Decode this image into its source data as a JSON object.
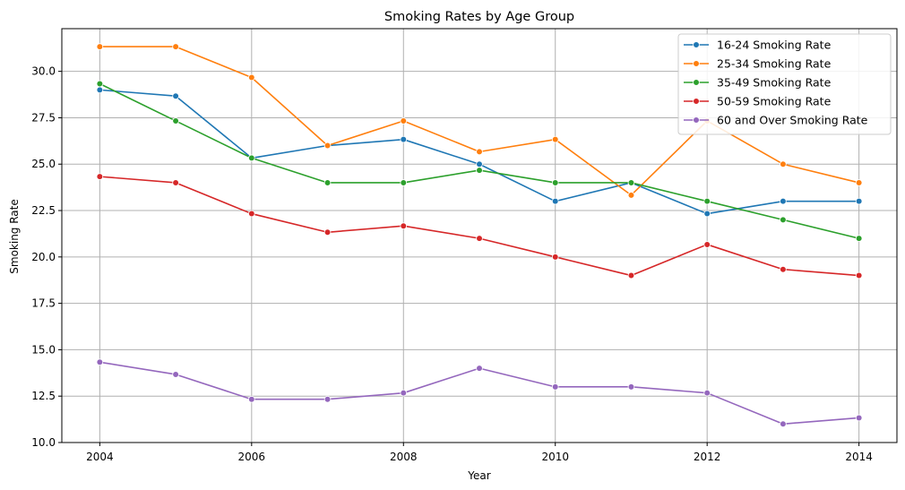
{
  "chart_data": {
    "type": "line",
    "title": "Smoking Rates by Age Group",
    "xlabel": "Year",
    "ylabel": "Smoking Rate",
    "x": [
      2004,
      2005,
      2006,
      2007,
      2008,
      2009,
      2010,
      2011,
      2012,
      2013,
      2014
    ],
    "xlim": [
      2003.5,
      2014.5
    ],
    "ylim": [
      10.0,
      32.3
    ],
    "xticks": [
      2004,
      2006,
      2008,
      2010,
      2012,
      2014
    ],
    "xtick_labels": [
      "2004",
      "2006",
      "2008",
      "2010",
      "2012",
      "2014"
    ],
    "yticks": [
      10.0,
      12.5,
      15.0,
      17.5,
      20.0,
      22.5,
      25.0,
      27.5,
      30.0
    ],
    "ytick_labels": [
      "10.0",
      "12.5",
      "15.0",
      "17.5",
      "20.0",
      "22.5",
      "25.0",
      "27.5",
      "30.0"
    ],
    "grid": true,
    "legend_position": "top-right",
    "series": [
      {
        "name": "16-24 Smoking Rate",
        "color": "#1f77b4",
        "values": [
          29.0,
          28.67,
          25.33,
          26.0,
          26.33,
          25.0,
          23.0,
          24.0,
          22.33,
          23.0,
          23.0
        ]
      },
      {
        "name": "25-34 Smoking Rate",
        "color": "#ff7f0e",
        "values": [
          31.33,
          31.33,
          29.67,
          26.0,
          27.33,
          25.67,
          26.33,
          23.33,
          27.33,
          25.0,
          24.0
        ]
      },
      {
        "name": "35-49 Smoking Rate",
        "color": "#2ca02c",
        "values": [
          29.33,
          27.33,
          25.33,
          24.0,
          24.0,
          24.67,
          24.0,
          24.0,
          23.0,
          22.0,
          21.0
        ]
      },
      {
        "name": "50-59 Smoking Rate",
        "color": "#d62728",
        "values": [
          24.33,
          24.0,
          22.33,
          21.33,
          21.67,
          21.0,
          20.0,
          19.0,
          20.67,
          19.33,
          19.0
        ]
      },
      {
        "name": "60 and Over Smoking Rate",
        "color": "#9467bd",
        "values": [
          14.33,
          13.67,
          12.33,
          12.33,
          12.67,
          14.0,
          13.0,
          13.0,
          12.67,
          11.0,
          11.33
        ]
      }
    ]
  }
}
